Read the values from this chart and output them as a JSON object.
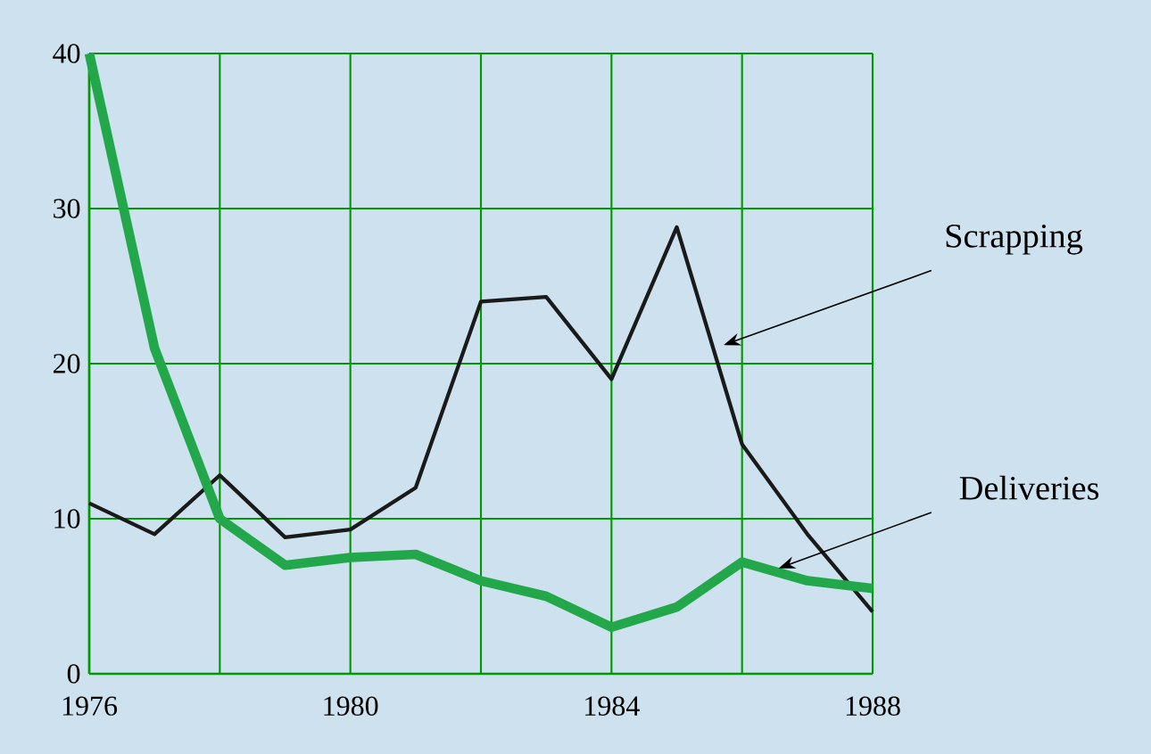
{
  "chart_data": {
    "type": "line",
    "x": [
      1976,
      1977,
      1978,
      1979,
      1980,
      1981,
      1982,
      1983,
      1984,
      1985,
      1986,
      1987,
      1988
    ],
    "series": [
      {
        "name": "Scrapping",
        "color": "#1a1a1a",
        "values": [
          11,
          9,
          12.8,
          8.8,
          9.3,
          12,
          24,
          24.3,
          19,
          28.8,
          14.8,
          9,
          4
        ]
      },
      {
        "name": "Deliveries",
        "color": "#22a84a",
        "values": [
          40,
          21,
          10,
          7,
          7.5,
          7.7,
          6,
          5,
          3,
          4.3,
          7.2,
          6,
          5.5
        ]
      }
    ],
    "xlim": [
      1976,
      1988
    ],
    "ylim": [
      0,
      40
    ],
    "xticks": [
      1976,
      {
        "value": 1978,
        "label": null
      },
      1980,
      {
        "value": 1982,
        "label": null
      },
      1984,
      {
        "value": 1986,
        "label": null
      },
      1988
    ],
    "yticks": [
      0,
      10,
      20,
      30,
      40
    ],
    "grid": true,
    "legend": false
  }
}
